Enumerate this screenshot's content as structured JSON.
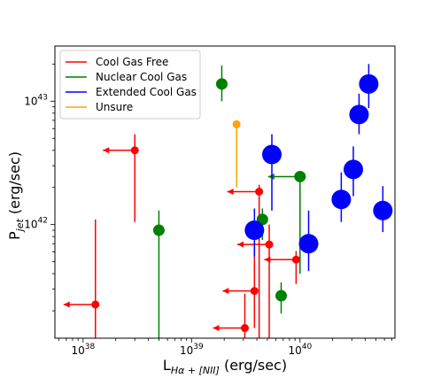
{
  "chart_data": {
    "type": "scatter",
    "x_scale": "log",
    "y_scale": "log",
    "xlim": [
      5.5e+37,
      7.5e+40
    ],
    "ylim": [
      1.2e+41,
      2.8e+43
    ],
    "x_ticks": [
      {
        "value": 1e+38,
        "mantissa": "10",
        "exp": "38"
      },
      {
        "value": 1e+39,
        "mantissa": "10",
        "exp": "39"
      },
      {
        "value": 1e+40,
        "mantissa": "10",
        "exp": "40"
      }
    ],
    "y_ticks": [
      {
        "value": 1e+42,
        "mantissa": "10",
        "exp": "42"
      },
      {
        "value": 1e+43,
        "mantissa": "10",
        "exp": "43"
      }
    ],
    "xlabel": {
      "main": "L",
      "sub": "Hα + [NII]",
      "unit": " (erg/sec)"
    },
    "ylabel": {
      "main": "P",
      "sub": "jet",
      "unit": " (erg/sec)"
    },
    "legend": {
      "position": "upper-left",
      "entries": [
        {
          "label": "Cool Gas Free",
          "color": "#ff0000"
        },
        {
          "label": "Nuclear Cool Gas",
          "color": "#008000"
        },
        {
          "label": "Extended Cool Gas",
          "color": "#0000ff"
        },
        {
          "label": "Unsure",
          "color": "#ffa500"
        }
      ]
    },
    "series": [
      {
        "name": "Cool Gas Free",
        "color": "#ff0000",
        "points": [
          {
            "x": 1.3e+38,
            "y": 2.25e+41,
            "ylo": 1.2e+41,
            "yhi": 1.1e+42,
            "upper_limit": true
          },
          {
            "x": 3e+38,
            "y": 4e+42,
            "ylo": 1.05e+42,
            "yhi": 5.4e+42,
            "upper_limit": true
          },
          {
            "x": 4.2e+39,
            "y": 1.85e+42,
            "ylo": 1.2e+41,
            "yhi": 2.1e+42,
            "upper_limit": true
          },
          {
            "x": 5.2e+39,
            "y": 6.9e+41,
            "ylo": 1.2e+41,
            "yhi": 1e+42,
            "upper_limit": true
          },
          {
            "x": 3.8e+39,
            "y": 2.9e+41,
            "ylo": 1.45e+41,
            "yhi": 6.9e+41,
            "upper_limit": true
          },
          {
            "x": 3.1e+39,
            "y": 1.45e+41,
            "ylo": 1.2e+41,
            "yhi": 2.75e+41,
            "upper_limit": true
          },
          {
            "x": 9.2e+39,
            "y": 5.2e+41,
            "ylo": 3.3e+41,
            "yhi": 6.1e+41,
            "upper_limit": true
          }
        ]
      },
      {
        "name": "Nuclear Cool Gas",
        "color": "#008000",
        "points": [
          {
            "x": 1.9e+39,
            "y": 1.38e+43,
            "ylo": 1e+43,
            "yhi": 1.95e+43,
            "upper_limit": false
          },
          {
            "x": 5e+38,
            "y": 9e+41,
            "ylo": 1.2e+41,
            "yhi": 1.3e+42,
            "upper_limit": false
          },
          {
            "x": 4.5e+39,
            "y": 1.1e+42,
            "ylo": 7.5e+41,
            "yhi": 1.35e+42,
            "upper_limit": false
          },
          {
            "x": 6.7e+39,
            "y": 2.65e+41,
            "ylo": 1.9e+41,
            "yhi": 3.4e+41,
            "upper_limit": false
          },
          {
            "x": 1e+40,
            "y": 2.45e+42,
            "ylo": 4e+41,
            "yhi": 2.45e+42,
            "upper_limit": true
          }
        ]
      },
      {
        "name": "Extended Cool Gas",
        "color": "#0000ff",
        "points": [
          {
            "x": 3.8e+39,
            "y": 9e+41,
            "ylo": 5.5e+41,
            "yhi": 1.35e+42,
            "upper_limit": false
          },
          {
            "x": 5.5e+39,
            "y": 3.7e+42,
            "ylo": 1.3e+42,
            "yhi": 5.4e+42,
            "upper_limit": false
          },
          {
            "x": 1.2e+40,
            "y": 7e+41,
            "ylo": 4.2e+41,
            "yhi": 1.3e+42,
            "upper_limit": false
          },
          {
            "x": 2.4e+40,
            "y": 1.6e+42,
            "ylo": 1.05e+42,
            "yhi": 2.65e+42,
            "upper_limit": false
          },
          {
            "x": 3.1e+40,
            "y": 2.8e+42,
            "ylo": 1.7e+42,
            "yhi": 4.3e+42,
            "upper_limit": false
          },
          {
            "x": 3.5e+40,
            "y": 7.8e+42,
            "ylo": 5.4e+42,
            "yhi": 1.15e+43,
            "upper_limit": false
          },
          {
            "x": 4.3e+40,
            "y": 1.38e+43,
            "ylo": 8.8e+42,
            "yhi": 2e+43,
            "upper_limit": false
          },
          {
            "x": 5.8e+40,
            "y": 1.3e+42,
            "ylo": 8.7e+41,
            "yhi": 2.05e+42,
            "upper_limit": false
          }
        ]
      },
      {
        "name": "Unsure",
        "color": "#ffa500",
        "points": [
          {
            "x": 2.6e+39,
            "y": 6.5e+42,
            "ylo": 2e+42,
            "yhi": 6.5e+42,
            "upper_limit": false
          }
        ]
      }
    ]
  }
}
